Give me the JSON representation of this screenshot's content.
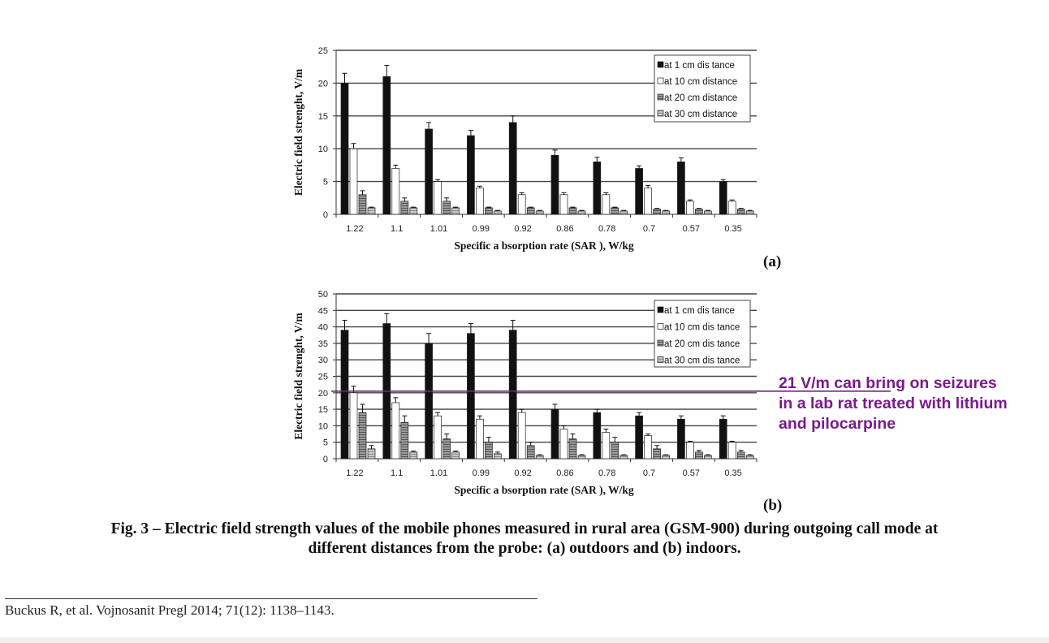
{
  "chart_data": [
    {
      "type": "bar",
      "panel_label": "(a)",
      "categories": [
        "1.22",
        "1.1",
        "1.01",
        "0.99",
        "0.92",
        "0.86",
        "0.78",
        "0.7",
        "0.57",
        "0.35"
      ],
      "ylabel": "Electric field strenght, V/m",
      "xlabel": "Specific a bsorption rate (SAR ), W/kg",
      "ylim": [
        0,
        25
      ],
      "yticks": [
        0,
        5,
        10,
        15,
        20,
        25
      ],
      "grid": true,
      "legend_position": "top-right",
      "series": [
        {
          "name": "at 1 cm dis tance",
          "values": [
            20,
            21,
            13,
            12,
            14,
            9,
            8,
            7,
            8,
            5
          ],
          "errors": [
            1.5,
            1.7,
            1.0,
            0.8,
            1.0,
            0.8,
            0.7,
            0.4,
            0.6,
            0.3
          ],
          "fill": "#111111"
        },
        {
          "name": "at 10 cm distance",
          "values": [
            10,
            7,
            5,
            4,
            3,
            3,
            3,
            4,
            2,
            2
          ],
          "errors": [
            0.8,
            0.5,
            0.3,
            0.3,
            0.3,
            0.3,
            0.3,
            0.4,
            0.2,
            0.2
          ],
          "fill": "#ffffff"
        },
        {
          "name": "at 20 cm distance",
          "values": [
            3,
            2,
            2,
            1,
            1,
            1,
            1,
            0.8,
            0.8,
            0.8
          ],
          "errors": [
            0.6,
            0.5,
            0.5,
            0.1,
            0.1,
            0.1,
            0.1,
            0.1,
            0.1,
            0.1
          ],
          "fill": "#8a8a8a"
        },
        {
          "name": "at 30 cm distance",
          "values": [
            1,
            1,
            1,
            0.5,
            0.5,
            0.5,
            0.5,
            0.5,
            0.5,
            0.5
          ],
          "errors": [
            0.1,
            0.1,
            0.1,
            0.1,
            0.1,
            0.1,
            0.1,
            0.1,
            0.1,
            0.1
          ],
          "fill": "#b5b5b5"
        }
      ]
    },
    {
      "type": "bar",
      "panel_label": "(b)",
      "categories": [
        "1.22",
        "1.1",
        "1.01",
        "0.99",
        "0.92",
        "0.86",
        "0.78",
        "0.7",
        "0.57",
        "0.35"
      ],
      "ylabel": "Electric field strenght, V/m",
      "xlabel": "Specific a bsorption rate (SAR ), W/kg",
      "ylim": [
        0,
        50
      ],
      "yticks": [
        0,
        5,
        10,
        15,
        20,
        25,
        30,
        35,
        40,
        45,
        50
      ],
      "grid": true,
      "legend_position": "top-right",
      "series": [
        {
          "name": "at 1 cm dis tance",
          "values": [
            39,
            41,
            35,
            38,
            39,
            15,
            14,
            13,
            12,
            12
          ],
          "errors": [
            3,
            3,
            3,
            3,
            3,
            1.5,
            1,
            1,
            1,
            1
          ],
          "fill": "#111111"
        },
        {
          "name": "at 10 cm dis tance",
          "values": [
            20,
            17,
            13,
            12,
            14,
            9,
            8,
            7,
            5,
            5
          ],
          "errors": [
            2,
            1.5,
            1,
            1,
            1,
            1,
            1,
            0.5,
            0.3,
            0.3
          ],
          "fill": "#ffffff"
        },
        {
          "name": "at 20 cm dis tance",
          "values": [
            14,
            11,
            6,
            5,
            4,
            6,
            5,
            3,
            2,
            2
          ],
          "errors": [
            2.5,
            2,
            1.5,
            1.5,
            1,
            1.5,
            1.5,
            1,
            0.5,
            0.5
          ],
          "fill": "#8a8a8a"
        },
        {
          "name": "at 30 cm dis tance",
          "values": [
            3,
            2,
            2,
            1.5,
            1,
            1,
            1,
            1,
            1,
            1
          ],
          "errors": [
            1,
            0.3,
            0.3,
            0.5,
            0.2,
            0.2,
            0.2,
            0.2,
            0.2,
            0.2
          ],
          "fill": "#b5b5b5"
        }
      ],
      "reference_line": {
        "value": 20.5,
        "color": "#7a1a8c"
      }
    }
  ],
  "annotation": {
    "lines": [
      "21 V/m can bring on seizures",
      "in a lab rat treated with lithium",
      "and pilocarpine"
    ],
    "color": "#7a1a8c"
  },
  "caption": {
    "line1": "Fig. 3 – Electric field strength values of the mobile phones measured in rural area (GSM-900) during outgoing call mode at",
    "line2": "different distances from the probe: (a) outdoors and (b) indoors."
  },
  "reference": "Buckus R, et al. Vojnosanit Pregl 2014; 71(12): 1138–1143."
}
